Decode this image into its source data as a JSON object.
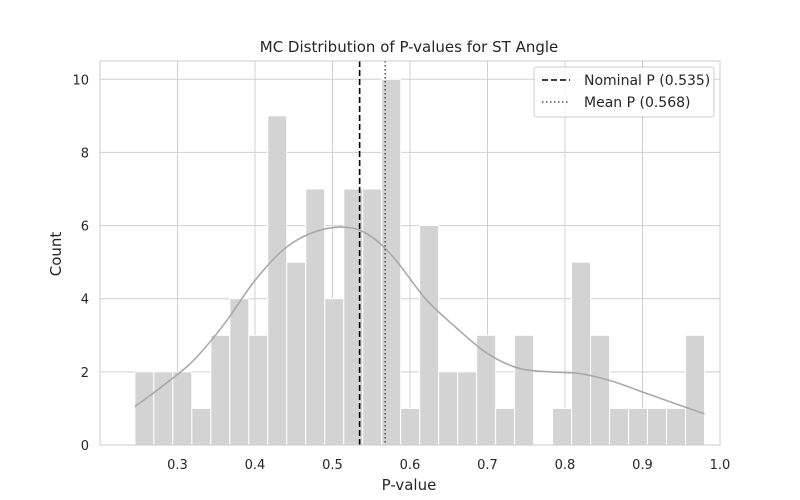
{
  "chart_data": {
    "type": "bar",
    "title": "MC Distribution of P-values for ST Angle",
    "xlabel": "P-value",
    "ylabel": "Count",
    "xlim": [
      0.2,
      1.0
    ],
    "ylim": [
      0,
      10.5
    ],
    "x_ticks": [
      0.3,
      0.4,
      0.5,
      0.6,
      0.7,
      0.8,
      0.9,
      1.0
    ],
    "x_tick_labels": [
      "0.3",
      "0.4",
      "0.5",
      "0.6",
      "0.7",
      "0.8",
      "0.9",
      "1.0"
    ],
    "y_ticks": [
      0,
      2,
      4,
      6,
      8,
      10
    ],
    "y_tick_labels": [
      "0",
      "2",
      "4",
      "6",
      "8",
      "10"
    ],
    "grid": true,
    "bins": {
      "start": 0.245,
      "width": 0.0245,
      "counts": [
        2,
        2,
        2,
        1,
        3,
        4,
        3,
        9,
        5,
        7,
        4,
        7,
        7,
        10,
        1,
        6,
        2,
        2,
        3,
        1,
        3,
        0,
        1,
        5,
        3,
        1,
        1,
        1,
        1,
        3
      ]
    },
    "kde": {
      "x": [
        0.245,
        0.28,
        0.32,
        0.36,
        0.4,
        0.44,
        0.48,
        0.52,
        0.55,
        0.58,
        0.62,
        0.66,
        0.7,
        0.74,
        0.78,
        0.82,
        0.86,
        0.9,
        0.94,
        0.98
      ],
      "y": [
        1.05,
        1.6,
        2.3,
        3.3,
        4.5,
        5.4,
        5.85,
        5.95,
        5.7,
        5.1,
        4.0,
        3.2,
        2.5,
        2.1,
        2.0,
        1.95,
        1.75,
        1.45,
        1.15,
        0.85
      ]
    },
    "reference_lines": [
      {
        "name": "Nominal P (0.535)",
        "x": 0.535,
        "style": "dashed",
        "color": "#000000"
      },
      {
        "name": "Mean P (0.568)",
        "x": 0.568,
        "style": "dotted",
        "color": "#555555"
      }
    ],
    "legend_position": "top-right",
    "colors": {
      "bars": "#d3d3d3",
      "kde": "#a9a9a9",
      "grid": "#d0d0d0",
      "axes": "#cccccc"
    }
  }
}
